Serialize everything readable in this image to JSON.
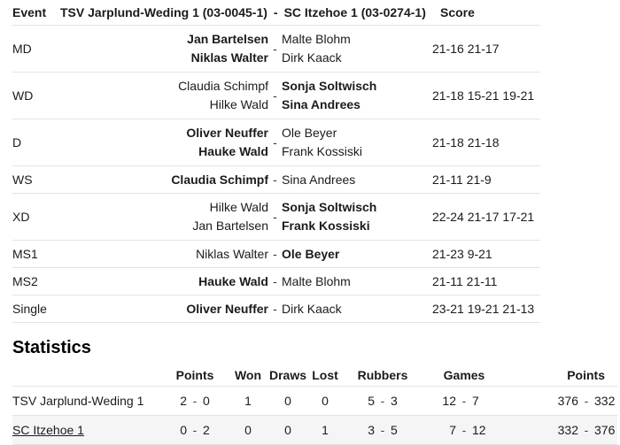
{
  "match_table": {
    "separator": "-",
    "header": {
      "event": "Event",
      "home_team": "TSV Jarplund-Weding 1 (03-0045-1)",
      "away_team": "SC Itzehoe 1 (03-0274-1)",
      "score": "Score"
    },
    "rows": [
      {
        "event": "MD",
        "home": [
          "Jan Bartelsen",
          "Niklas Walter"
        ],
        "away": [
          "Malte Blohm",
          "Dirk Kaack"
        ],
        "winner": "home",
        "score": "21-16 21-17"
      },
      {
        "event": "WD",
        "home": [
          "Claudia Schimpf",
          "Hilke Wald"
        ],
        "away": [
          "Sonja Soltwisch",
          "Sina Andrees"
        ],
        "winner": "away",
        "score": "21-18 15-21 19-21"
      },
      {
        "event": "D",
        "home": [
          "Oliver Neuffer",
          "Hauke Wald"
        ],
        "away": [
          "Ole Beyer",
          "Frank Kossiski"
        ],
        "winner": "home",
        "score": "21-18 21-18"
      },
      {
        "event": "WS",
        "home": [
          "Claudia Schimpf"
        ],
        "away": [
          "Sina Andrees"
        ],
        "winner": "home",
        "score": "21-11 21-9"
      },
      {
        "event": "XD",
        "home": [
          "Hilke Wald",
          "Jan Bartelsen"
        ],
        "away": [
          "Sonja Soltwisch",
          "Frank Kossiski"
        ],
        "winner": "away",
        "score": "22-24 21-17 17-21"
      },
      {
        "event": "MS1",
        "home": [
          "Niklas Walter"
        ],
        "away": [
          "Ole Beyer"
        ],
        "winner": "away",
        "score": "21-23 9-21"
      },
      {
        "event": "MS2",
        "home": [
          "Hauke Wald"
        ],
        "away": [
          "Malte Blohm"
        ],
        "winner": "home",
        "score": "21-11 21-11"
      },
      {
        "event": "Single",
        "home": [
          "Oliver Neuffer"
        ],
        "away": [
          "Dirk Kaack"
        ],
        "winner": "home",
        "score": "23-21 19-21 21-13"
      }
    ]
  },
  "statistics": {
    "title": "Statistics",
    "dash": "-",
    "columns": [
      "Points",
      "Won",
      "Draws",
      "Lost",
      "Rubbers",
      "Games",
      "Points"
    ],
    "rows": [
      {
        "team": "TSV Jarplund-Weding 1",
        "link": false,
        "shaded": false,
        "points": [
          "2",
          "0"
        ],
        "won": "1",
        "draws": "0",
        "lost": "0",
        "rubbers": [
          "5",
          "3"
        ],
        "games": [
          "12",
          "7"
        ],
        "total_points": [
          "376",
          "332"
        ]
      },
      {
        "team": "SC Itzehoe 1",
        "link": true,
        "shaded": true,
        "points": [
          "0",
          "2"
        ],
        "won": "0",
        "draws": "0",
        "lost": "1",
        "rubbers": [
          "3",
          "5"
        ],
        "games": [
          "7",
          "12"
        ],
        "total_points": [
          "332",
          "376"
        ]
      }
    ]
  }
}
